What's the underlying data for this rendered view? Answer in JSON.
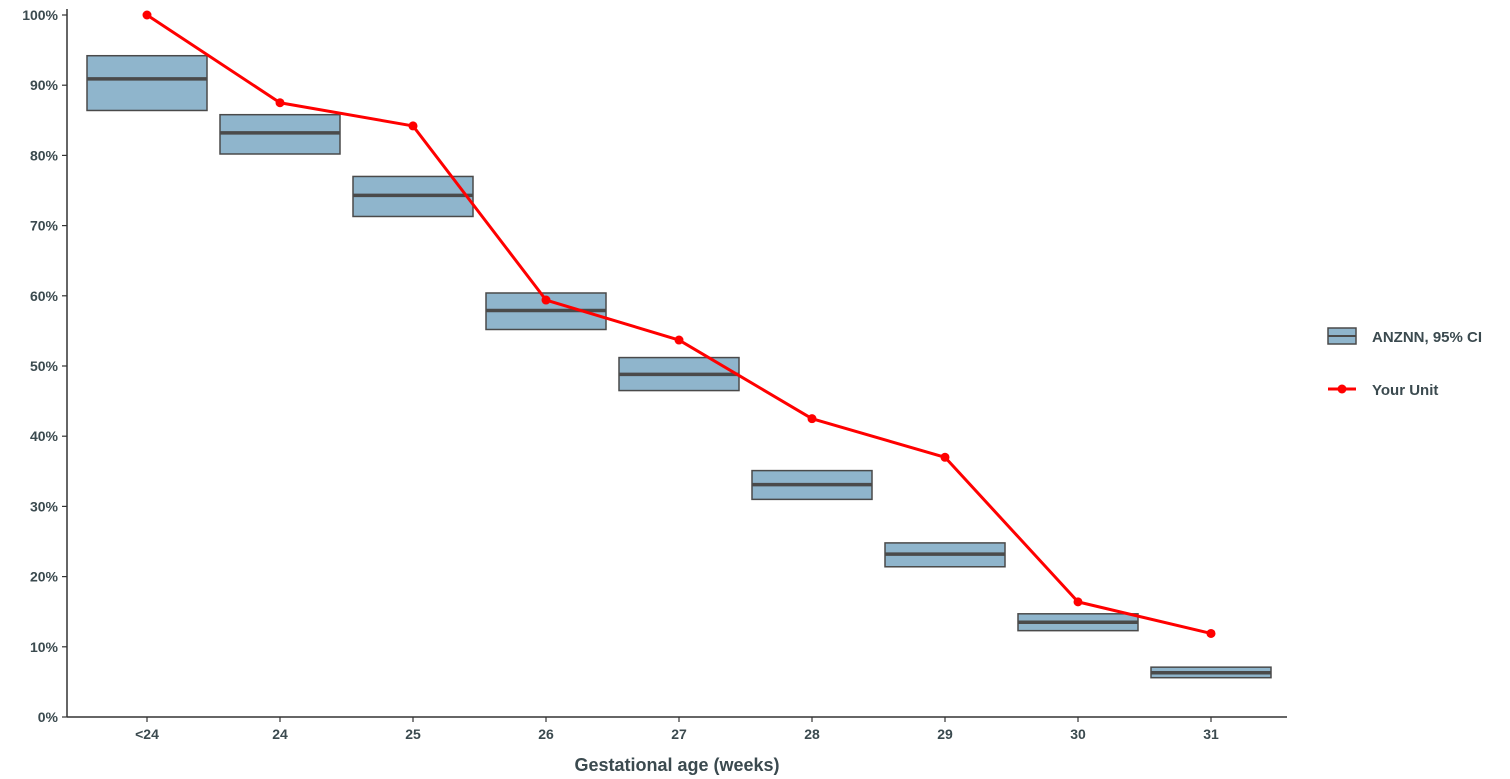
{
  "chart_data": {
    "type": "line",
    "title": "",
    "xlabel": "Gestational age (weeks)",
    "ylabel": "",
    "categories": [
      "<24",
      "24",
      "25",
      "26",
      "27",
      "28",
      "29",
      "30",
      "31"
    ],
    "ylim": [
      0,
      100
    ],
    "y_ticks": [
      "0%",
      "10%",
      "20%",
      "30%",
      "40%",
      "50%",
      "60%",
      "70%",
      "80%",
      "90%",
      "100%"
    ],
    "grid": false,
    "legend_position": "right",
    "series": [
      {
        "name": "ANZNN, 95% CI",
        "kind": "crossbar",
        "color": "#8fb5cc",
        "median": [
          90.9,
          83.2,
          74.3,
          57.9,
          48.8,
          33.1,
          23.2,
          13.5,
          6.3
        ],
        "lower": [
          86.4,
          80.2,
          71.3,
          55.2,
          46.5,
          31.0,
          21.4,
          12.3,
          5.6
        ],
        "upper": [
          94.2,
          85.8,
          77.0,
          60.4,
          51.2,
          35.1,
          24.8,
          14.7,
          7.1
        ]
      },
      {
        "name": "Your Unit",
        "kind": "line",
        "color": "#ff0000",
        "values": [
          100.0,
          87.5,
          84.2,
          59.4,
          53.7,
          42.5,
          37.0,
          16.4,
          11.9
        ]
      }
    ]
  }
}
